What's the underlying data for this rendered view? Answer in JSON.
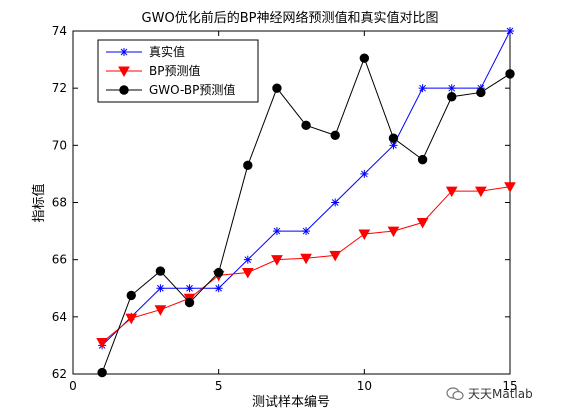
{
  "chart_data": {
    "type": "line",
    "title": "GWO优化前后的BP神经网络预测值和真实值对比图",
    "xlabel": "测试样本编号",
    "ylabel": "指标值",
    "xlim": [
      0,
      15
    ],
    "ylim": [
      62,
      74
    ],
    "xticks": [
      0,
      5,
      10,
      15
    ],
    "yticks": [
      62,
      64,
      66,
      68,
      70,
      72,
      74
    ],
    "grid": false,
    "legend_position": "top-left",
    "x": [
      1,
      2,
      3,
      4,
      5,
      6,
      7,
      8,
      9,
      10,
      11,
      12,
      13,
      14,
      15
    ],
    "series": [
      {
        "name": "真实值",
        "color": "#0000ff",
        "marker": "asterisk",
        "values": [
          63.0,
          64.0,
          65.0,
          65.0,
          65.0,
          66.0,
          67.0,
          67.0,
          68.0,
          69.0,
          70.0,
          72.0,
          72.0,
          72.0,
          74.0
        ]
      },
      {
        "name": "BP预测值",
        "color": "#ff0000",
        "marker": "triangle-down",
        "values": [
          63.1,
          63.95,
          64.25,
          64.65,
          65.45,
          65.55,
          66.0,
          66.05,
          66.15,
          66.9,
          67.0,
          67.3,
          68.4,
          68.4,
          68.55
        ]
      },
      {
        "name": "GWO-BP预测值",
        "color": "#000000",
        "marker": "circle",
        "values": [
          62.05,
          64.75,
          65.6,
          64.5,
          65.55,
          69.3,
          72.0,
          70.7,
          70.35,
          73.05,
          70.25,
          69.5,
          71.7,
          71.85,
          72.5
        ]
      }
    ]
  },
  "watermark": {
    "text": "天天Matlab",
    "icon": "wechat-icon"
  }
}
